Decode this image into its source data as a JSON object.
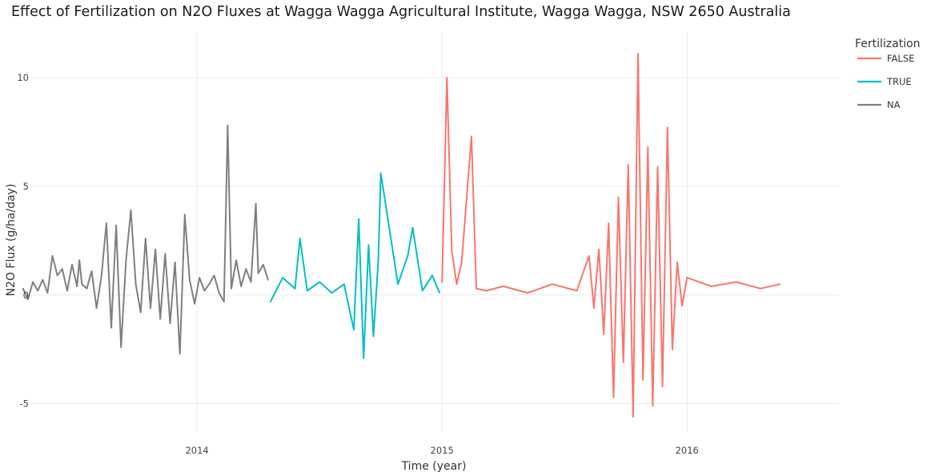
{
  "chart_data": {
    "type": "line",
    "title": "Effect of Fertilization on N2O Fluxes at Wagga Wagga Agricultural Institute, Wagga Wagga, NSW 2650 Australia",
    "xlabel": "Time (year)",
    "ylabel": "N2O Flux (g/ha/day)",
    "xlim": [
      2013.32,
      2016.62
    ],
    "ylim": [
      -6.3,
      12.1
    ],
    "x_ticks": [
      {
        "value": 2014.0,
        "label": "2014"
      },
      {
        "value": 2015.0,
        "label": "2015"
      },
      {
        "value": 2016.0,
        "label": "2016"
      }
    ],
    "y_ticks": [
      {
        "value": -5,
        "label": "-5"
      },
      {
        "value": 0,
        "label": "0"
      },
      {
        "value": 5,
        "label": "5"
      },
      {
        "value": 10,
        "label": "10"
      }
    ],
    "grid": true,
    "legend": {
      "title": "Fertilization",
      "position": "right",
      "entries": [
        {
          "label": "FALSE",
          "color": "#F8766D"
        },
        {
          "label": "TRUE",
          "color": "#00BFC4"
        },
        {
          "label": "NA",
          "color": "#7F7F7F"
        }
      ]
    },
    "series": [
      {
        "name": "NA",
        "color": "#7F7F7F",
        "x": [
          2013.29,
          2013.31,
          2013.33,
          2013.35,
          2013.37,
          2013.39,
          2013.41,
          2013.43,
          2013.45,
          2013.47,
          2013.49,
          2013.51,
          2013.52,
          2013.53,
          2013.55,
          2013.57,
          2013.59,
          2013.61,
          2013.63,
          2013.65,
          2013.67,
          2013.69,
          2013.71,
          2013.73,
          2013.75,
          2013.77,
          2013.79,
          2013.81,
          2013.83,
          2013.85,
          2013.87,
          2013.89,
          2013.91,
          2013.93,
          2013.95,
          2013.97,
          2013.99,
          2014.01,
          2014.03,
          2014.05,
          2014.07,
          2014.09,
          2014.11,
          2014.125,
          2014.14,
          2014.16,
          2014.18,
          2014.2,
          2014.22,
          2014.24,
          2014.25,
          2014.27,
          2014.29
        ],
        "y": [
          0.3,
          -0.2,
          0.6,
          0.2,
          0.7,
          0.1,
          1.8,
          0.9,
          1.2,
          0.2,
          1.4,
          0.4,
          1.6,
          0.5,
          0.3,
          1.1,
          -0.6,
          0.9,
          3.3,
          -1.5,
          3.2,
          -2.4,
          1.6,
          3.9,
          0.5,
          -0.8,
          2.6,
          -0.6,
          2.1,
          -1.1,
          1.9,
          -1.3,
          1.5,
          -2.7,
          3.7,
          0.7,
          -0.4,
          0.8,
          0.2,
          0.5,
          0.9,
          0.1,
          -0.3,
          7.8,
          0.3,
          1.6,
          0.4,
          1.2,
          0.6,
          4.2,
          1.0,
          1.4,
          0.7
        ]
      },
      {
        "name": "TRUE",
        "color": "#00BFC4",
        "x": [
          2014.3,
          2014.35,
          2014.4,
          2014.42,
          2014.45,
          2014.5,
          2014.55,
          2014.6,
          2014.64,
          2014.66,
          2014.68,
          2014.7,
          2014.72,
          2014.74,
          2014.75,
          2014.82,
          2014.86,
          2014.88,
          2014.92,
          2014.96,
          2014.99
        ],
        "y": [
          -0.3,
          0.8,
          0.3,
          2.6,
          0.2,
          0.6,
          0.1,
          0.5,
          -1.6,
          3.5,
          -2.9,
          2.3,
          -1.9,
          1.6,
          5.6,
          0.5,
          1.8,
          3.1,
          0.2,
          0.9,
          0.1
        ]
      },
      {
        "name": "FALSE",
        "color": "#F8766D",
        "x": [
          2015.0,
          2015.02,
          2015.04,
          2015.06,
          2015.08,
          2015.12,
          2015.14,
          2015.18,
          2015.25,
          2015.35,
          2015.45,
          2015.55,
          2015.6,
          2015.62,
          2015.64,
          2015.66,
          2015.68,
          2015.7,
          2015.72,
          2015.74,
          2015.76,
          2015.78,
          2015.8,
          2015.82,
          2015.84,
          2015.86,
          2015.88,
          2015.9,
          2015.92,
          2015.94,
          2015.96,
          2015.98,
          2016.0,
          2016.1,
          2016.2,
          2016.3,
          2016.38
        ],
        "y": [
          0.6,
          10.0,
          2.0,
          0.5,
          1.5,
          7.3,
          0.3,
          0.2,
          0.4,
          0.1,
          0.5,
          0.2,
          1.8,
          -0.6,
          2.1,
          -1.8,
          3.3,
          -4.7,
          4.5,
          -3.1,
          6.0,
          -5.6,
          11.1,
          -3.9,
          6.8,
          -5.1,
          5.9,
          -4.2,
          7.7,
          -2.5,
          1.5,
          -0.5,
          0.8,
          0.4,
          0.6,
          0.3,
          0.5
        ]
      }
    ]
  }
}
